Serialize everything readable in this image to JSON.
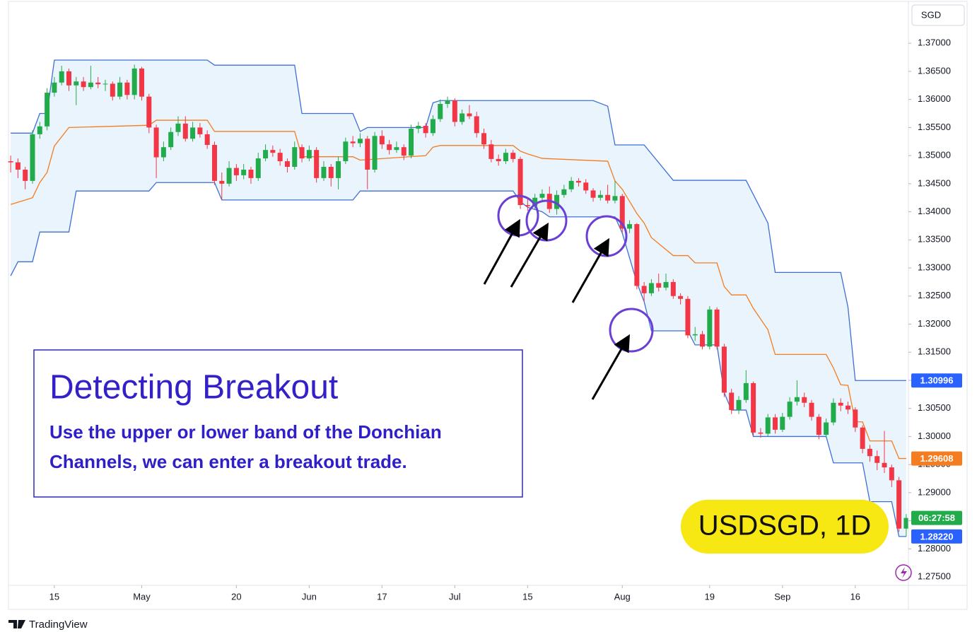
{
  "chart_data": {
    "type": "candlestick",
    "currency_label": "SGD",
    "symbol_label": "USDSGD, 1D",
    "brand": "TradingView",
    "annotation": {
      "title": "Detecting Breakout",
      "lines": [
        "Use the upper or lower band of the Donchian",
        "Channels, we can enter a breakout trade."
      ]
    },
    "up_color": "#22ab4a",
    "down_color": "#f23645",
    "fill_color": "#eaf4fc",
    "xlim": [
      -0.3,
      123.3
    ],
    "ylim": [
      1.2735,
      1.3777
    ],
    "yticks": [
      {
        "value": 1.275,
        "label": "1.27500"
      },
      {
        "value": 1.28,
        "label": "1.28000"
      },
      {
        "value": 1.285,
        "label": "1.28500"
      },
      {
        "value": 1.29,
        "label": "1.29000"
      },
      {
        "value": 1.295,
        "label": "1.29500"
      },
      {
        "value": 1.3,
        "label": "1.30000"
      },
      {
        "value": 1.305,
        "label": "1.30500"
      },
      {
        "value": 1.31,
        "label": "1.31000"
      },
      {
        "value": 1.315,
        "label": "1.31500"
      },
      {
        "value": 1.32,
        "label": "1.32000"
      },
      {
        "value": 1.325,
        "label": "1.32500"
      },
      {
        "value": 1.33,
        "label": "1.33000"
      },
      {
        "value": 1.335,
        "label": "1.33500"
      },
      {
        "value": 1.34,
        "label": "1.34000"
      },
      {
        "value": 1.345,
        "label": "1.34500"
      },
      {
        "value": 1.35,
        "label": "1.35000"
      },
      {
        "value": 1.355,
        "label": "1.35500"
      },
      {
        "value": 1.36,
        "label": "1.36000"
      },
      {
        "value": 1.365,
        "label": "1.36500"
      },
      {
        "value": 1.37,
        "label": "1.37000"
      }
    ],
    "xticks": [
      {
        "value": 6,
        "label": "15"
      },
      {
        "value": 18,
        "label": "May"
      },
      {
        "value": 31,
        "label": "20"
      },
      {
        "value": 41,
        "label": "Jun"
      },
      {
        "value": 51,
        "label": "17"
      },
      {
        "value": 61,
        "label": "Jul"
      },
      {
        "value": 71,
        "label": "15"
      },
      {
        "value": 84,
        "label": "Aug"
      },
      {
        "value": 96,
        "label": "19"
      },
      {
        "value": 106,
        "label": "Sep"
      },
      {
        "value": 116,
        "label": "16"
      }
    ],
    "candles": [
      [
        1.349,
        1.35,
        1.347,
        1.3488
      ],
      [
        1.3488,
        1.3495,
        1.346,
        1.3475
      ],
      [
        1.3475,
        1.348,
        1.344,
        1.3455
      ],
      [
        1.3455,
        1.3545,
        1.345,
        1.3538
      ],
      [
        1.3538,
        1.356,
        1.353,
        1.3552
      ],
      [
        1.3552,
        1.362,
        1.3545,
        1.3612
      ],
      [
        1.3612,
        1.364,
        1.3605,
        1.363
      ],
      [
        1.363,
        1.366,
        1.3625,
        1.365
      ],
      [
        1.365,
        1.3655,
        1.3615,
        1.3625
      ],
      [
        1.3625,
        1.364,
        1.359,
        1.3632
      ],
      [
        1.3632,
        1.364,
        1.3615,
        1.3622
      ],
      [
        1.3622,
        1.366,
        1.3618,
        1.363
      ],
      [
        1.363,
        1.364,
        1.362,
        1.3627
      ],
      [
        1.3627,
        1.3635,
        1.3615,
        1.3628
      ],
      [
        1.3628,
        1.3632,
        1.3598,
        1.3605
      ],
      [
        1.3605,
        1.364,
        1.36,
        1.363
      ],
      [
        1.363,
        1.3635,
        1.36,
        1.3608
      ],
      [
        1.3608,
        1.3662,
        1.36,
        1.3655
      ],
      [
        1.3655,
        1.3658,
        1.3598,
        1.3605
      ],
      [
        1.3605,
        1.361,
        1.354,
        1.355
      ],
      [
        1.355,
        1.3555,
        1.346,
        1.3497
      ],
      [
        1.3497,
        1.3525,
        1.349,
        1.3515
      ],
      [
        1.3515,
        1.355,
        1.351,
        1.3542
      ],
      [
        1.3542,
        1.357,
        1.3535,
        1.3557
      ],
      [
        1.3557,
        1.357,
        1.3525,
        1.353
      ],
      [
        1.353,
        1.356,
        1.3525,
        1.355
      ],
      [
        1.355,
        1.3558,
        1.3532,
        1.3538
      ],
      [
        1.3538,
        1.3545,
        1.3512,
        1.3519
      ],
      [
        1.3519,
        1.3525,
        1.3448,
        1.3455
      ],
      [
        1.3455,
        1.347,
        1.3421,
        1.345
      ],
      [
        1.345,
        1.349,
        1.3445,
        1.3478
      ],
      [
        1.3478,
        1.3485,
        1.3455,
        1.3465
      ],
      [
        1.3465,
        1.3485,
        1.3458,
        1.3475
      ],
      [
        1.3475,
        1.348,
        1.345,
        1.346
      ],
      [
        1.346,
        1.3505,
        1.3455,
        1.3495
      ],
      [
        1.3495,
        1.352,
        1.349,
        1.351
      ],
      [
        1.351,
        1.3518,
        1.3498,
        1.3505
      ],
      [
        1.3505,
        1.3512,
        1.3482,
        1.349
      ],
      [
        1.349,
        1.3495,
        1.347,
        1.348
      ],
      [
        1.348,
        1.3525,
        1.3475,
        1.3515
      ],
      [
        1.3515,
        1.352,
        1.3488,
        1.3495
      ],
      [
        1.3495,
        1.3518,
        1.349,
        1.351
      ],
      [
        1.351,
        1.3515,
        1.3452,
        1.346
      ],
      [
        1.346,
        1.349,
        1.3455,
        1.348
      ],
      [
        1.348,
        1.3485,
        1.3445,
        1.346
      ],
      [
        1.346,
        1.3498,
        1.344,
        1.349
      ],
      [
        1.349,
        1.3532,
        1.3485,
        1.3525
      ],
      [
        1.3525,
        1.3535,
        1.3515,
        1.3522
      ],
      [
        1.3522,
        1.354,
        1.3515,
        1.353
      ],
      [
        1.353,
        1.3535,
        1.344,
        1.3475
      ],
      [
        1.3475,
        1.3542,
        1.347,
        1.3535
      ],
      [
        1.3535,
        1.3545,
        1.3512,
        1.352
      ],
      [
        1.352,
        1.3528,
        1.3502,
        1.351
      ],
      [
        1.351,
        1.3525,
        1.3505,
        1.3515
      ],
      [
        1.3515,
        1.352,
        1.3492,
        1.35
      ],
      [
        1.35,
        1.3555,
        1.3495,
        1.3548
      ],
      [
        1.3548,
        1.356,
        1.354,
        1.3553
      ],
      [
        1.3553,
        1.3558,
        1.3532,
        1.354
      ],
      [
        1.354,
        1.3572,
        1.3535,
        1.3565
      ],
      [
        1.3565,
        1.36,
        1.356,
        1.3592
      ],
      [
        1.3592,
        1.3605,
        1.3585,
        1.3598
      ],
      [
        1.3598,
        1.3602,
        1.3552,
        1.356
      ],
      [
        1.356,
        1.3582,
        1.3555,
        1.3575
      ],
      [
        1.3575,
        1.359,
        1.3565,
        1.357
      ],
      [
        1.357,
        1.3578,
        1.3532,
        1.354
      ],
      [
        1.354,
        1.3548,
        1.3512,
        1.352
      ],
      [
        1.352,
        1.3528,
        1.3488,
        1.3494
      ],
      [
        1.3494,
        1.3502,
        1.3482,
        1.349
      ],
      [
        1.349,
        1.3512,
        1.3485,
        1.3505
      ],
      [
        1.3505,
        1.351,
        1.3488,
        1.3494
      ],
      [
        1.3494,
        1.3498,
        1.3405,
        1.3412
      ],
      [
        1.3412,
        1.3422,
        1.3402,
        1.341
      ],
      [
        1.341,
        1.3432,
        1.3405,
        1.3425
      ],
      [
        1.3425,
        1.344,
        1.342,
        1.3432
      ],
      [
        1.3432,
        1.3445,
        1.3398,
        1.3405
      ],
      [
        1.3405,
        1.3438,
        1.3395,
        1.343
      ],
      [
        1.343,
        1.3448,
        1.3425,
        1.344
      ],
      [
        1.344,
        1.3462,
        1.3435,
        1.3455
      ],
      [
        1.3455,
        1.346,
        1.3445,
        1.3452
      ],
      [
        1.3452,
        1.3458,
        1.3432,
        1.3438
      ],
      [
        1.3438,
        1.3442,
        1.3418,
        1.3425
      ],
      [
        1.3425,
        1.3438,
        1.342,
        1.343
      ],
      [
        1.343,
        1.3448,
        1.3415,
        1.342
      ],
      [
        1.342,
        1.3455,
        1.3415,
        1.3428
      ],
      [
        1.3428,
        1.3432,
        1.3362,
        1.337
      ],
      [
        1.337,
        1.3385,
        1.3362,
        1.3378
      ],
      [
        1.3378,
        1.338,
        1.3262,
        1.3268
      ],
      [
        1.3268,
        1.3275,
        1.324,
        1.3255
      ],
      [
        1.3255,
        1.328,
        1.325,
        1.3273
      ],
      [
        1.3273,
        1.329,
        1.3258,
        1.3265
      ],
      [
        1.3265,
        1.329,
        1.326,
        1.3275
      ],
      [
        1.3275,
        1.328,
        1.3245,
        1.325
      ],
      [
        1.325,
        1.3255,
        1.3235,
        1.3245
      ],
      [
        1.3245,
        1.325,
        1.3175,
        1.318
      ],
      [
        1.318,
        1.3195,
        1.317,
        1.3182
      ],
      [
        1.3182,
        1.3188,
        1.3155,
        1.316
      ],
      [
        1.316,
        1.3232,
        1.3155,
        1.3226
      ],
      [
        1.3226,
        1.323,
        1.3155,
        1.316
      ],
      [
        1.316,
        1.3165,
        1.307,
        1.3078
      ],
      [
        1.3078,
        1.3085,
        1.304,
        1.3047
      ],
      [
        1.3047,
        1.3072,
        1.304,
        1.3065
      ],
      [
        1.3065,
        1.3118,
        1.306,
        1.3095
      ],
      [
        1.3095,
        1.3098,
        1.3,
        1.3007
      ],
      [
        1.3007,
        1.3015,
        1.2998,
        1.3005
      ],
      [
        1.3005,
        1.304,
        1.3,
        1.3034
      ],
      [
        1.3034,
        1.304,
        1.3005,
        1.3012
      ],
      [
        1.3012,
        1.3042,
        1.3008,
        1.3035
      ],
      [
        1.3035,
        1.307,
        1.303,
        1.3062
      ],
      [
        1.3062,
        1.31,
        1.3055,
        1.307
      ],
      [
        1.307,
        1.3078,
        1.3052,
        1.306
      ],
      [
        1.306,
        1.3065,
        1.3028,
        1.3035
      ],
      [
        1.3035,
        1.304,
        1.2995,
        1.3003
      ],
      [
        1.3003,
        1.3032,
        1.2998,
        1.3025
      ],
      [
        1.3025,
        1.3068,
        1.302,
        1.306
      ],
      [
        1.306,
        1.3068,
        1.3045,
        1.3055
      ],
      [
        1.3055,
        1.3062,
        1.304,
        1.3048
      ],
      [
        1.3048,
        1.3052,
        1.3008,
        1.3016
      ],
      [
        1.3016,
        1.302,
        1.297,
        1.2978
      ],
      [
        1.2978,
        1.2985,
        1.2955,
        1.2965
      ],
      [
        1.2965,
        1.2975,
        1.294,
        1.2953
      ],
      [
        1.2953,
        1.301,
        1.2935,
        1.2945
      ],
      [
        1.2945,
        1.295,
        1.291,
        1.2922
      ],
      [
        1.2922,
        1.2928,
        1.283,
        1.2836
      ],
      [
        1.2836,
        1.2862,
        1.2822,
        1.2855
      ]
    ],
    "bands": [
      {
        "color": "#3d6fd6",
        "x": [
          0,
          3,
          4,
          5,
          6,
          27,
          28,
          39,
          40,
          47,
          48,
          49,
          57,
          58,
          59,
          80,
          82,
          83,
          87,
          91,
          101,
          104,
          105,
          114,
          115,
          116,
          123
        ],
        "values": [
          1.354,
          1.354,
          1.3575,
          1.3575,
          1.367,
          1.367,
          1.3661,
          1.3661,
          1.3575,
          1.3575,
          1.3543,
          1.355,
          1.355,
          1.3594,
          1.3598,
          1.3598,
          1.3588,
          1.3519,
          1.3519,
          1.3456,
          1.3456,
          1.338,
          1.3292,
          1.3292,
          1.323,
          1.30996,
          1.30996
        ]
      },
      {
        "color": "#f57c1f",
        "x": [
          0,
          3,
          4,
          5,
          6,
          8,
          19,
          20,
          27,
          28,
          39,
          40,
          47,
          48,
          57,
          58,
          59,
          69,
          70,
          71,
          73,
          82,
          83,
          84,
          86,
          87,
          88,
          91,
          93,
          94,
          97,
          98,
          99,
          101,
          102,
          104,
          105,
          112,
          113,
          114,
          115,
          116,
          117,
          118,
          121,
          122,
          123
        ],
        "values": [
          1.3413,
          1.3425,
          1.3452,
          1.347,
          1.3517,
          1.355,
          1.3554,
          1.3563,
          1.3563,
          1.3543,
          1.3543,
          1.3498,
          1.3498,
          1.3492,
          1.35,
          1.3515,
          1.3518,
          1.3518,
          1.3508,
          1.3503,
          1.3495,
          1.349,
          1.3455,
          1.344,
          1.3397,
          1.338,
          1.3354,
          1.3322,
          1.3322,
          1.3309,
          1.3309,
          1.3267,
          1.3252,
          1.3252,
          1.3228,
          1.319,
          1.3146,
          1.3146,
          1.3122,
          1.3092,
          1.3091,
          1.3026,
          1.3026,
          1.2992,
          1.2992,
          1.29608,
          1.29608
        ]
      },
      {
        "color": "#3d6fd6",
        "x": [
          0,
          1,
          3,
          4,
          8,
          9,
          19,
          20,
          28,
          29,
          47,
          48,
          69,
          70,
          71,
          73,
          74,
          83,
          84,
          86,
          87,
          88,
          93,
          94,
          97,
          98,
          99,
          101,
          102,
          112,
          113,
          117,
          118,
          121,
          122,
          123
        ],
        "values": [
          1.3286,
          1.3311,
          1.3311,
          1.3364,
          1.3364,
          1.3437,
          1.3437,
          1.3452,
          1.3452,
          1.3421,
          1.3421,
          1.3437,
          1.3437,
          1.3418,
          1.3408,
          1.34,
          1.3391,
          1.3391,
          1.3362,
          1.3274,
          1.324,
          1.3188,
          1.3188,
          1.3163,
          1.3163,
          1.3078,
          1.3047,
          1.3047,
          1.3,
          1.3,
          1.2953,
          1.2953,
          1.2884,
          1.2884,
          1.2822,
          1.2822
        ]
      }
    ],
    "price_labels": [
      {
        "value": 1.30996,
        "label": "1.30996",
        "color": "#2962ff"
      },
      {
        "value": 1.29608,
        "label": "1.29608",
        "color": "#f57c1f"
      },
      {
        "value": 1.2822,
        "label": "1.28220",
        "color": "#2962ff"
      }
    ],
    "countdown": {
      "text": "06:27:58",
      "color": "#22ab4a"
    }
  }
}
